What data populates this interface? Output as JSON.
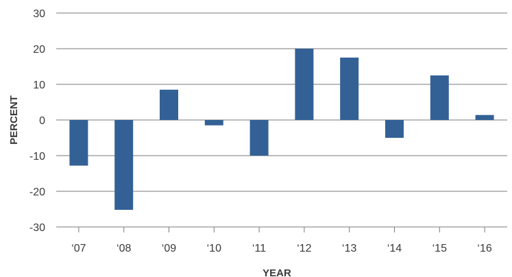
{
  "chart_data": {
    "type": "bar",
    "categories": [
      "‘07",
      "‘08",
      "‘09",
      "‘10",
      "‘11",
      "‘12",
      "‘13",
      "‘14",
      "‘15",
      "‘16"
    ],
    "values": [
      -12.8,
      -25.2,
      8.5,
      -1.5,
      -10.0,
      20.0,
      17.5,
      -5.0,
      12.5,
      1.4
    ],
    "yticks": [
      30,
      20,
      10,
      0,
      -10,
      -20,
      -30
    ],
    "ylim": [
      -30,
      30
    ],
    "xlabel": "YEAR",
    "ylabel": "PERCENT",
    "grid": true,
    "legend": "none"
  },
  "colors": {
    "bar": "#336196",
    "grid": "#7a7a7a",
    "text": "#3a3a3a"
  }
}
